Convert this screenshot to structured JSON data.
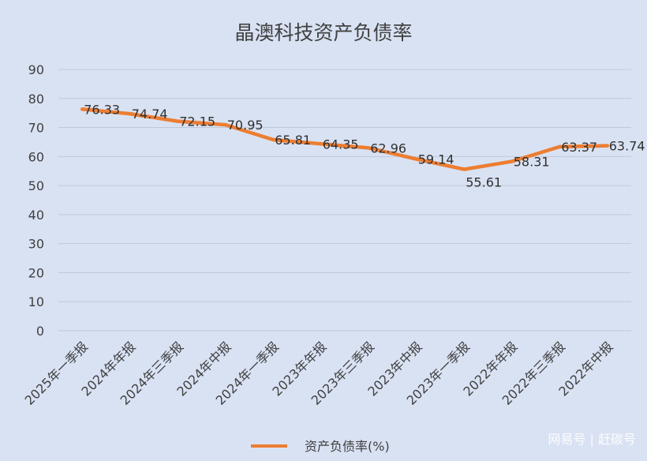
{
  "chart_data": {
    "type": "line",
    "title": "晶澳科技资产负债率",
    "categories": [
      "2025年一季报",
      "2024年年报",
      "2024年三季报",
      "2024年中报",
      "2024年一季报",
      "2023年年报",
      "2023年三季报",
      "2023年中报",
      "2023年一季报",
      "2022年年报",
      "2022年三季报",
      "2022年中报"
    ],
    "series": [
      {
        "name": "资产负债率(%)",
        "values": [
          76.33,
          74.74,
          72.15,
          70.95,
          65.81,
          64.35,
          62.96,
          59.14,
          55.61,
          58.31,
          63.37,
          63.74
        ],
        "color": "#ed7d31"
      }
    ],
    "yticks": [
      "0",
      "10",
      "20",
      "30",
      "40",
      "50",
      "60",
      "70",
      "80",
      "90"
    ],
    "ylim": [
      0,
      90
    ],
    "grid": true,
    "legend": "bottom"
  },
  "watermark": "网易号 | 赶碳号",
  "colors": {
    "background": "#d9e2f3",
    "grid": "#c0c8d6",
    "text": "#404040",
    "line": "#ed7d31"
  }
}
